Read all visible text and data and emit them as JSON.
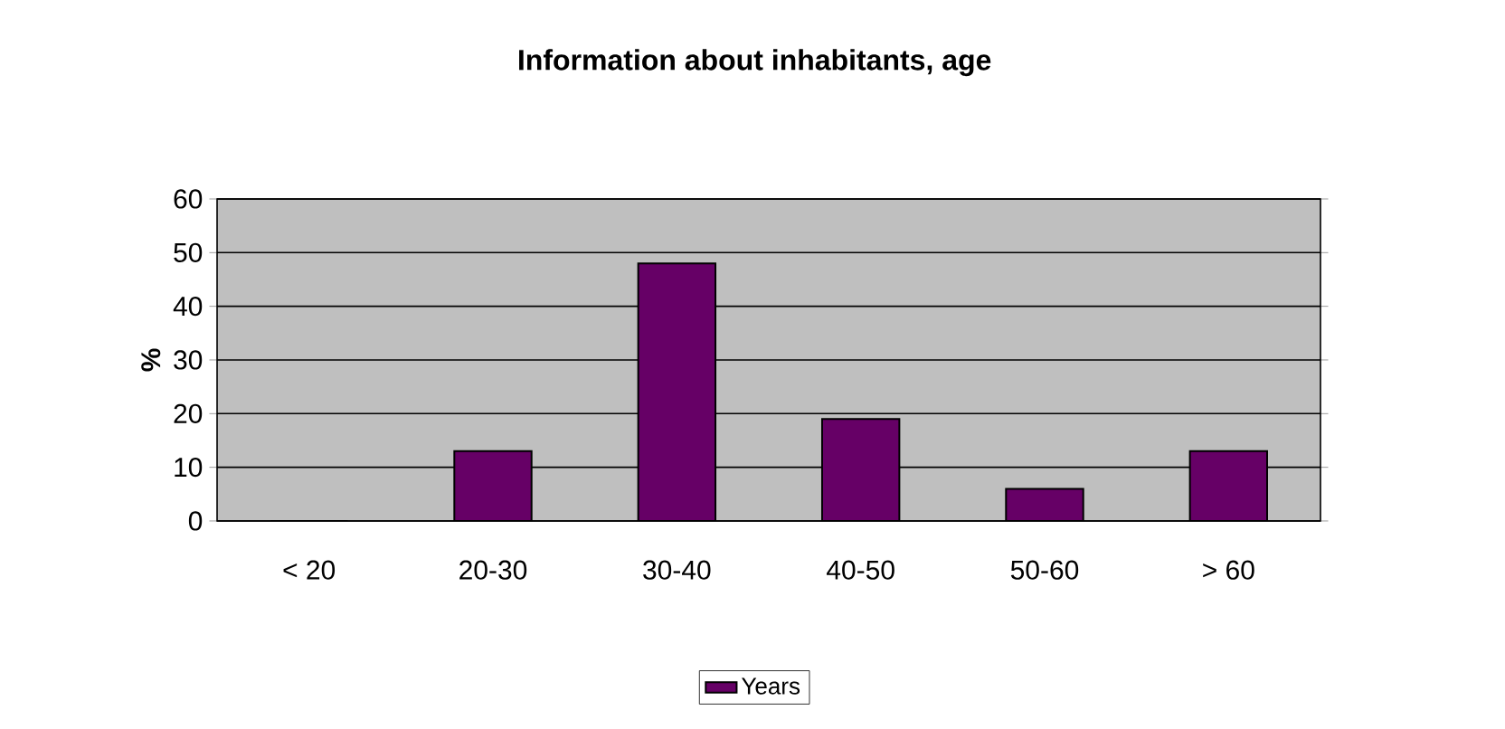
{
  "chart_data": {
    "type": "bar",
    "title": "Information about inhabitants, age",
    "ylabel": "%",
    "categories": [
      "< 20",
      "20-30",
      "30-40",
      "40-50",
      "50-60",
      "> 60"
    ],
    "series": [
      {
        "name": "Years",
        "color": "#660066",
        "values": [
          0,
          13,
          48,
          19,
          6,
          13
        ]
      }
    ],
    "ylim": [
      0,
      60
    ],
    "yticks": [
      0,
      10,
      20,
      30,
      40,
      50,
      60
    ],
    "grid": "y",
    "legend": "bottom"
  }
}
